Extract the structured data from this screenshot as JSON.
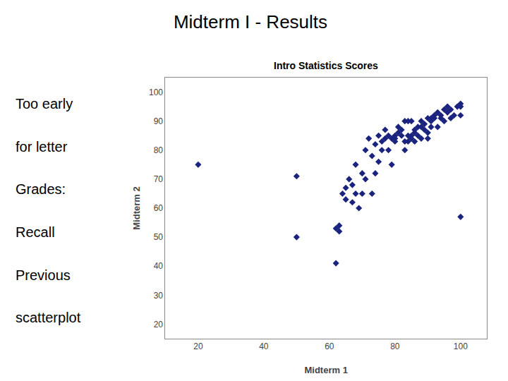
{
  "chart_data": {
    "type": "scatter",
    "title": "Midterm I - Results",
    "subtitle": "Intro Statistics Scores",
    "x_label": "Midterm 1",
    "y_label": "Midterm 2",
    "annotations": [
      "Too early",
      "for letter",
      "Grades:",
      "Recall",
      "Previous",
      "scatterplot"
    ],
    "color": "#1A237E",
    "marker": "diamond",
    "grid": false,
    "xlim": [
      10,
      108
    ],
    "ylim": [
      15,
      105
    ],
    "xticks": [
      20,
      40,
      60,
      80,
      100
    ],
    "yticks": [
      20,
      30,
      40,
      50,
      60,
      70,
      80,
      90,
      100
    ],
    "x": [
      20,
      50,
      50,
      62,
      62,
      63,
      63,
      64,
      65,
      65,
      66,
      67,
      67,
      68,
      68,
      69,
      70,
      70,
      71,
      71,
      72,
      73,
      73,
      74,
      74,
      75,
      75,
      76,
      76,
      77,
      77,
      78,
      78,
      79,
      79,
      80,
      80,
      80,
      81,
      81,
      82,
      82,
      83,
      83,
      83,
      84,
      84,
      84,
      85,
      85,
      85,
      86,
      86,
      86,
      87,
      87,
      88,
      88,
      88,
      89,
      89,
      90,
      90,
      90,
      91,
      91,
      91,
      92,
      92,
      93,
      93,
      94,
      94,
      95,
      95,
      96,
      96,
      97,
      97,
      98,
      99,
      100,
      100,
      100,
      100
    ],
    "values": [
      75,
      71,
      50,
      41,
      53,
      54,
      52,
      65,
      67,
      63,
      70,
      62,
      68,
      75,
      65,
      60,
      72,
      65,
      80,
      70,
      84,
      78,
      65,
      82,
      72,
      85,
      76,
      83,
      80,
      87,
      84,
      85,
      80,
      84,
      75,
      85,
      84,
      83,
      88,
      86,
      87,
      85,
      90,
      83,
      80,
      85,
      83,
      90,
      85,
      84,
      90,
      86,
      83,
      87,
      88,
      85,
      90,
      88,
      84,
      89,
      87,
      91,
      86,
      84,
      91,
      90,
      88,
      92,
      91,
      93,
      88,
      92,
      91,
      94,
      90,
      95,
      93,
      94,
      91,
      92,
      95,
      96,
      95,
      92,
      57
    ]
  }
}
